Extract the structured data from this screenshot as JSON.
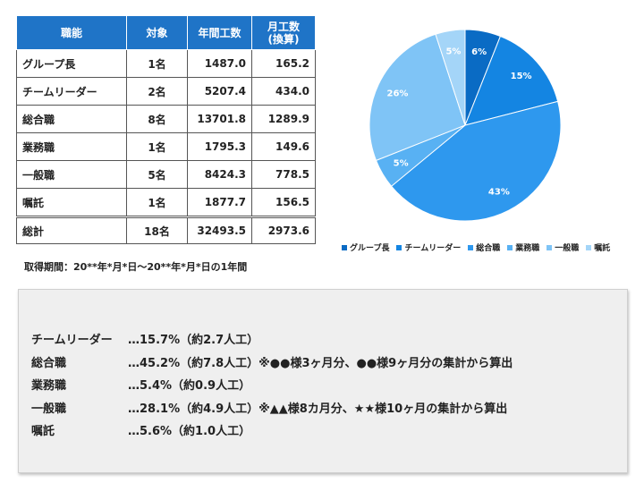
{
  "table": {
    "headers": [
      "職能",
      "対象",
      "年間工数",
      "月工数\n(換算)"
    ],
    "header_line1": "月工数",
    "header_line2": "(換算)",
    "rows": [
      {
        "role": "グループ長",
        "count": "1名",
        "annual": "1487.0",
        "monthly": "165.2"
      },
      {
        "role": "チームリーダー",
        "count": "2名",
        "annual": "5207.4",
        "monthly": "434.0"
      },
      {
        "role": "総合職",
        "count": "8名",
        "annual": "13701.8",
        "monthly": "1289.9"
      },
      {
        "role": "業務職",
        "count": "1名",
        "annual": "1795.3",
        "monthly": "149.6"
      },
      {
        "role": "一般職",
        "count": "5名",
        "annual": "8424.3",
        "monthly": "778.5"
      },
      {
        "role": "嘱託",
        "count": "1名",
        "annual": "1877.7",
        "monthly": "156.5"
      }
    ],
    "total": {
      "role": "総計",
      "count": "18名",
      "annual": "32493.5",
      "monthly": "2973.6"
    }
  },
  "chart_data": {
    "type": "pie",
    "categories": [
      "グループ長",
      "チームリーダー",
      "総合職",
      "業務職",
      "一般職",
      "嘱託"
    ],
    "values": [
      6,
      15,
      43,
      5,
      26,
      5
    ],
    "labels": [
      "6%",
      "15%",
      "43%",
      "5%",
      "26%",
      "5%"
    ],
    "colors": [
      "#0a6bc4",
      "#1485e2",
      "#2e98ee",
      "#58b1f3",
      "#7fc4f6",
      "#a4d5f8"
    ],
    "legend_position": "bottom"
  },
  "period_text": "取得期間：20**年*月*日～20**年*月*日の1年間",
  "notes": [
    {
      "name": "チームリーダー",
      "text": "…15.7%（約2.7人工）"
    },
    {
      "name": "総合職",
      "text": "…45.2%（約7.8人工）※●●様3ヶ月分、●●様9ヶ月分の集計から算出"
    },
    {
      "name": "業務職",
      "text": "…5.4%（約0.9人工）"
    },
    {
      "name": "一般職",
      "text": "…28.1%（約4.9人工）※▲▲様8カ月分、★★様10ヶ月の集計から算出"
    },
    {
      "name": "嘱託",
      "text": "…5.6%（約1.0人工）"
    }
  ]
}
